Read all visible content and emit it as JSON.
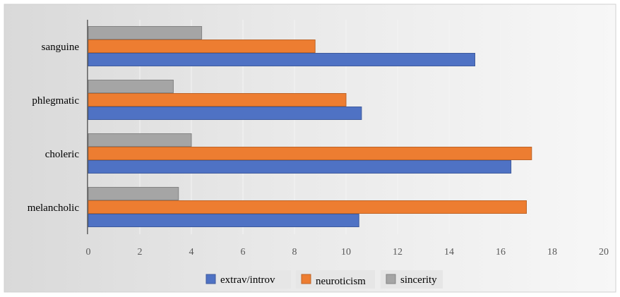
{
  "chart_data": {
    "type": "bar",
    "orientation": "horizontal",
    "categories": [
      "melancholic",
      "choleric",
      "phlegmatic",
      "sanguine"
    ],
    "series": [
      {
        "name": "extrav/introv",
        "values": [
          10.5,
          16.4,
          10.6,
          15.0
        ]
      },
      {
        "name": "neuroticism",
        "values": [
          17.0,
          17.2,
          10.0,
          8.8
        ]
      },
      {
        "name": "sincerity",
        "values": [
          3.5,
          4.0,
          3.3,
          4.4
        ]
      }
    ],
    "title": "",
    "xlabel": "",
    "ylabel": "",
    "xlim": [
      0,
      20
    ],
    "xticks": [
      "0",
      "2",
      "4",
      "6",
      "8",
      "10",
      "12",
      "14",
      "16",
      "18",
      "20"
    ],
    "grid": true,
    "legend_position": "bottom",
    "colors": {
      "extrav/introv": "#4f72c4",
      "neuroticism": "#ed7d31",
      "sincerity": "#a5a5a5"
    }
  }
}
